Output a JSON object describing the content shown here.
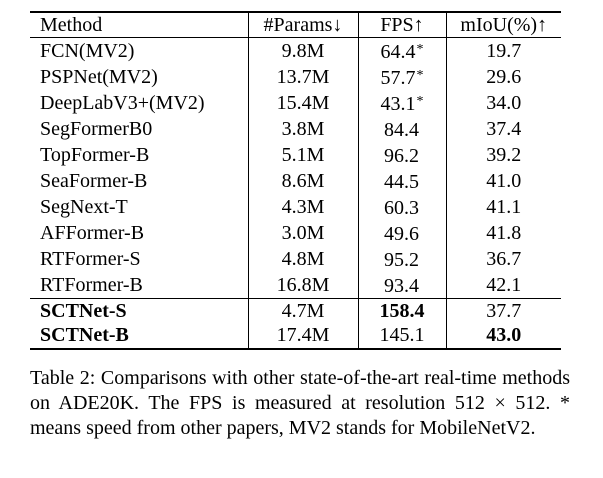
{
  "table": {
    "headers": {
      "method": "Method",
      "params": "#Params↓",
      "fps": "FPS↑",
      "miou": "mIoU(%)↑"
    },
    "rows": [
      {
        "method": "FCN(MV2)",
        "params": "9.8M",
        "fps": "64.4",
        "fps_mark": "*",
        "miou": "19.7"
      },
      {
        "method": "PSPNet(MV2)",
        "params": "13.7M",
        "fps": "57.7",
        "fps_mark": "*",
        "miou": "29.6"
      },
      {
        "method": "DeepLabV3+(MV2)",
        "params": "15.4M",
        "fps": "43.1",
        "fps_mark": "*",
        "miou": "34.0"
      },
      {
        "method": "SegFormerB0",
        "params": "3.8M",
        "fps": "84.4",
        "fps_mark": "",
        "miou": "37.4"
      },
      {
        "method": "TopFormer-B",
        "params": "5.1M",
        "fps": "96.2",
        "fps_mark": "",
        "miou": "39.2"
      },
      {
        "method": "SeaFormer-B",
        "params": "8.6M",
        "fps": "44.5",
        "fps_mark": "",
        "miou": "41.0"
      },
      {
        "method": "SegNext-T",
        "params": "4.3M",
        "fps": "60.3",
        "fps_mark": "",
        "miou": "41.1"
      },
      {
        "method": "AFFormer-B",
        "params": "3.0M",
        "fps": "49.6",
        "fps_mark": "",
        "miou": "41.8"
      },
      {
        "method": "RTFormer-S",
        "params": "4.8M",
        "fps": "95.2",
        "fps_mark": "",
        "miou": "36.7"
      },
      {
        "method": "RTFormer-B",
        "params": "16.8M",
        "fps": "93.4",
        "fps_mark": "",
        "miou": "42.1"
      }
    ],
    "ours": [
      {
        "method": "SCTNet-S",
        "params": "4.7M",
        "fps": "158.4",
        "miou": "37.7"
      },
      {
        "method": "SCTNet-B",
        "params": "17.4M",
        "fps": "145.1",
        "miou": "43.0"
      }
    ]
  },
  "caption": "Table 2: Comparisons with other state-of-the-art real-time methods on ADE20K. The FPS is measured at resolution 512 × 512. * means speed from other papers, MV2 stands for MobileNetV2."
}
